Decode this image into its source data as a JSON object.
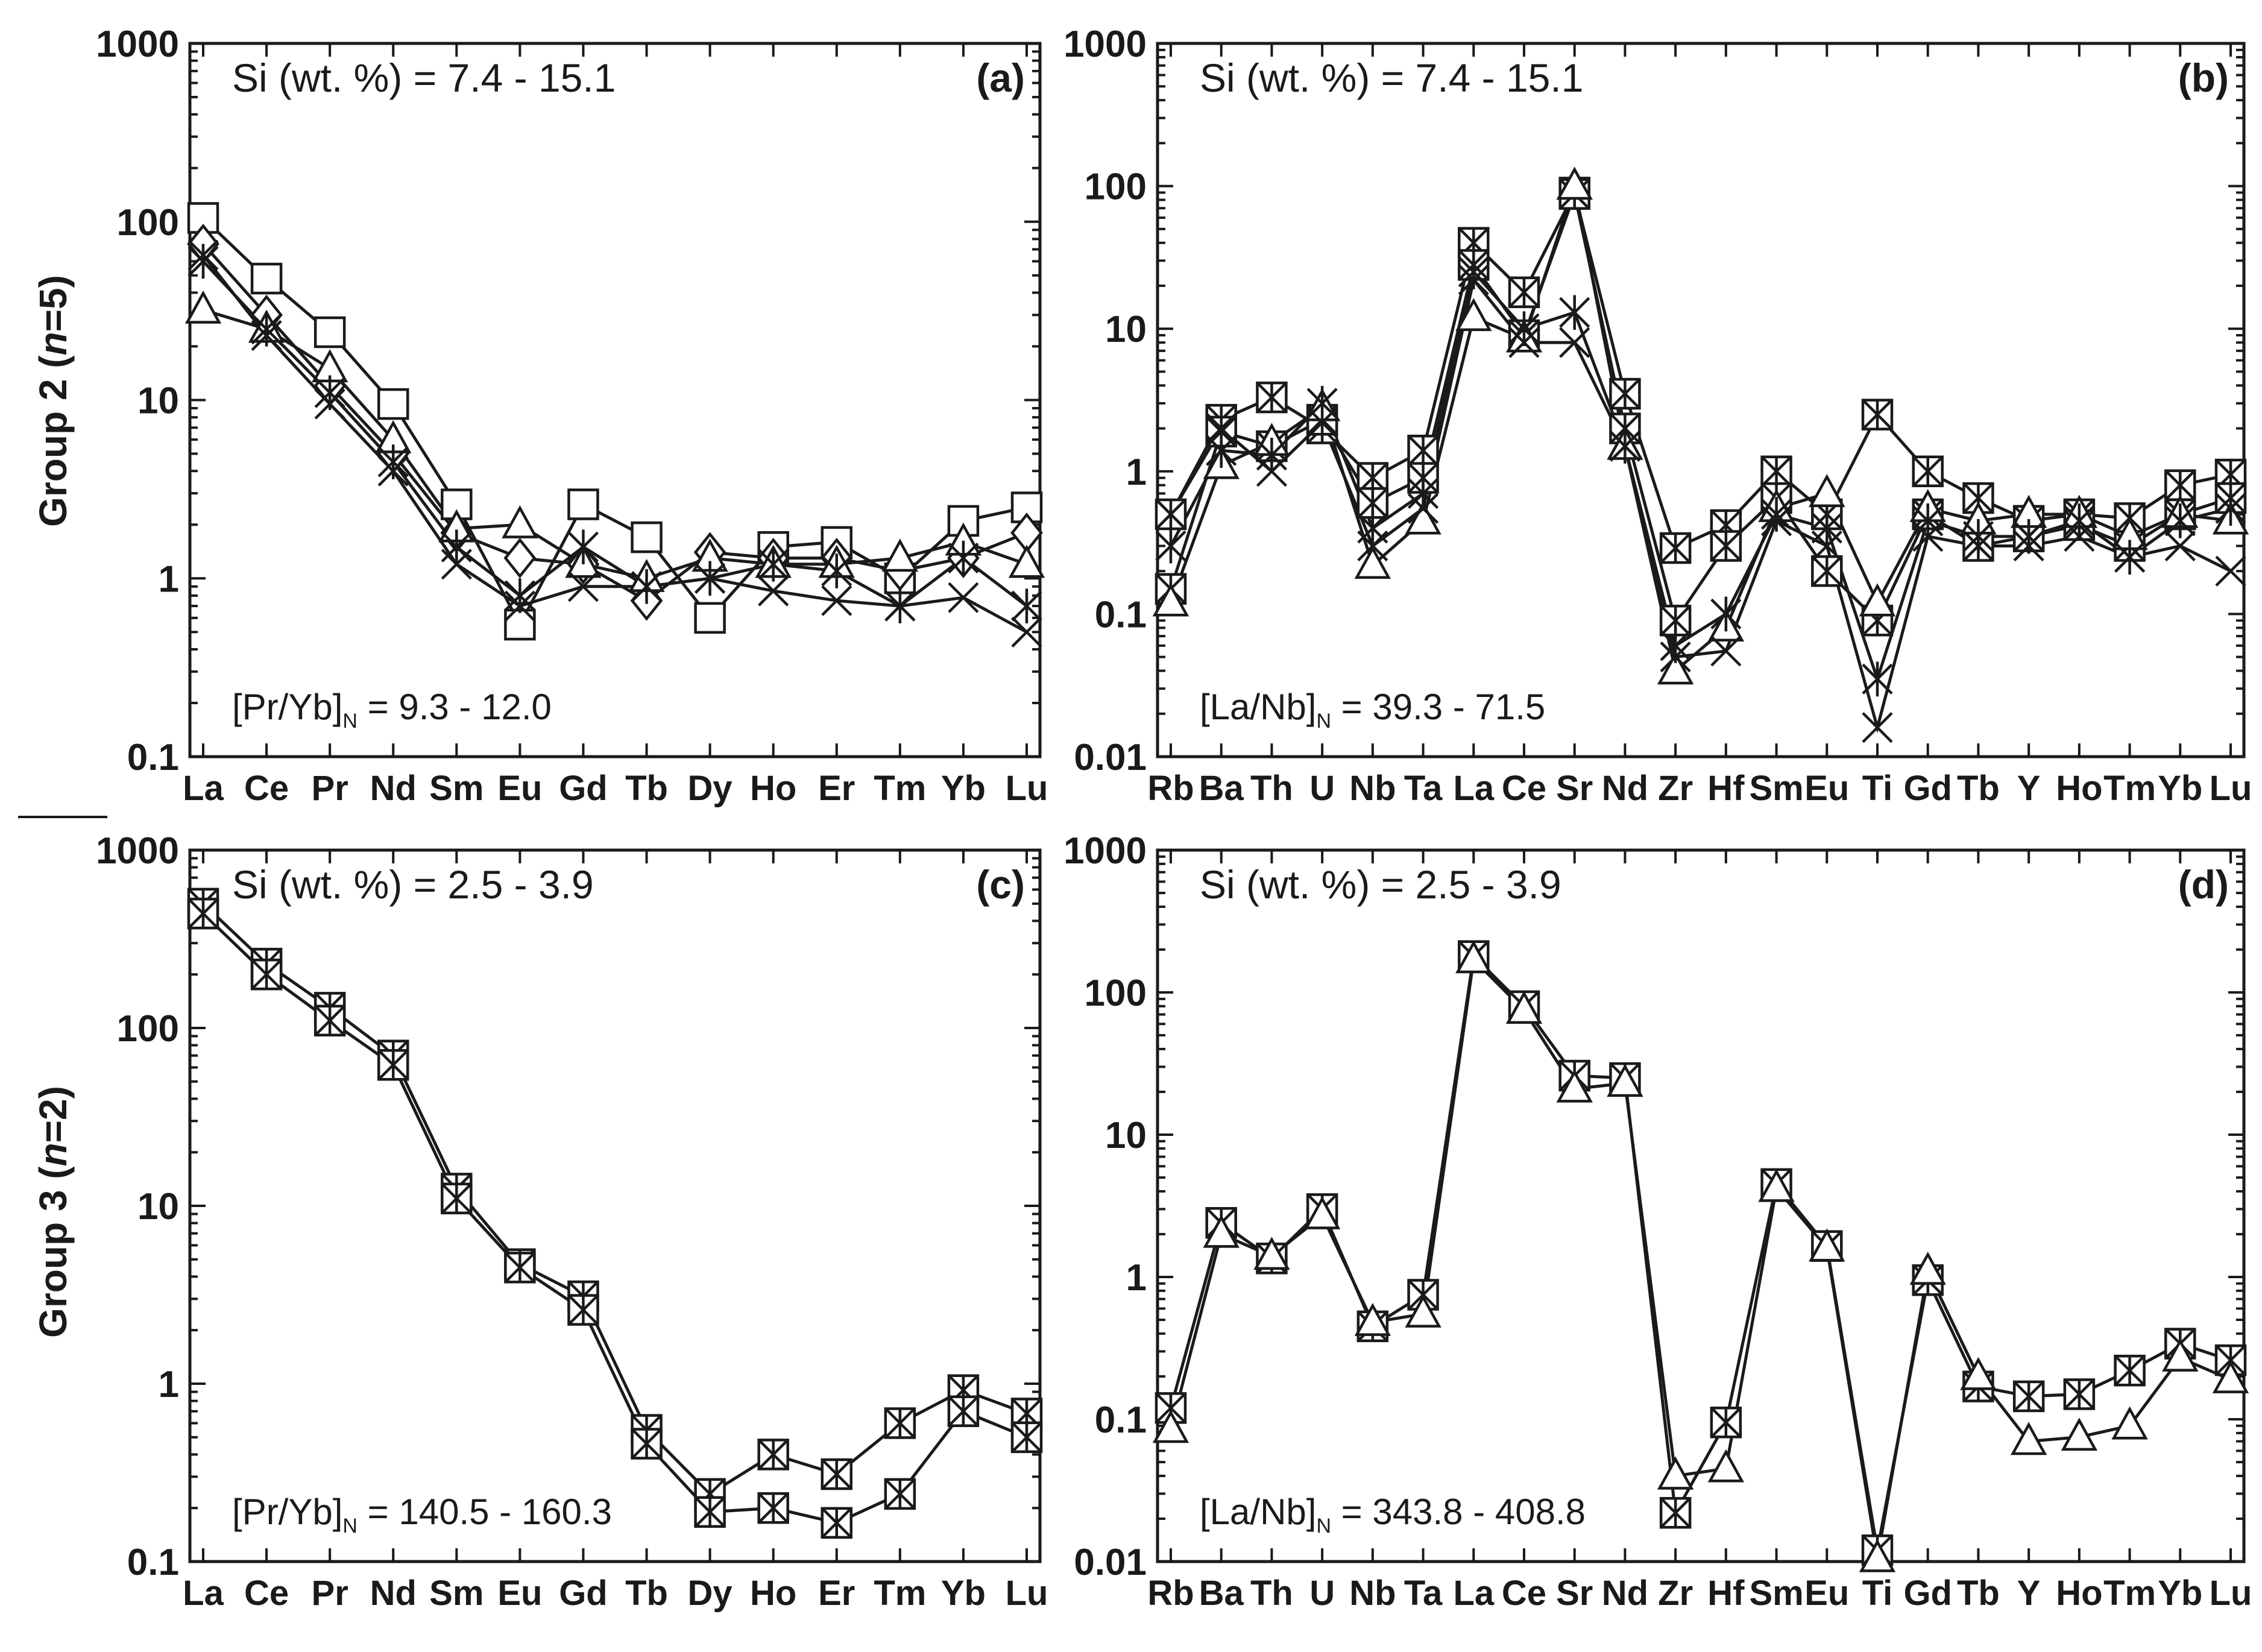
{
  "figure": {
    "row_labels": [
      {
        "prefix": "Group 2 (",
        "n": "n",
        "suffix": "=5)"
      },
      {
        "prefix": "Group 3 (",
        "n": "n",
        "suffix": "=2)"
      }
    ]
  },
  "chart_data": [
    {
      "type": "line",
      "id": "a",
      "letter": "(a)",
      "title": "Si (wt. %) = 7.4 - 15.1",
      "ratio": {
        "open": "[Pr/Yb]",
        "sub": "N",
        "value": " = 9.3 - 12.0"
      },
      "yscale": "log",
      "ylim": [
        0.1,
        1000
      ],
      "yticks": [
        "1000",
        "100",
        "10",
        "1",
        "0.1"
      ],
      "categories": [
        "La",
        "Ce",
        "Pr",
        "Nd",
        "Sm",
        "Eu",
        "Gd",
        "Tb",
        "Dy",
        "Ho",
        "Er",
        "Tm",
        "Yb",
        "Lu"
      ],
      "series": [
        {
          "name": "square",
          "marker": "square",
          "values": [
            105,
            48,
            24,
            9.5,
            2.6,
            0.55,
            2.6,
            1.7,
            0.6,
            1.5,
            1.6,
            1.0,
            2.1,
            2.5
          ]
        },
        {
          "name": "diamond",
          "marker": "diamond",
          "values": [
            75,
            30,
            12,
            5.0,
            1.8,
            1.3,
            1.2,
            0.75,
            1.4,
            1.3,
            1.3,
            1.1,
            1.3,
            1.8
          ]
        },
        {
          "name": "triangle",
          "marker": "triangle",
          "values": [
            32,
            25,
            15,
            6.0,
            1.9,
            2.0,
            1.2,
            1.0,
            1.3,
            1.2,
            1.2,
            1.3,
            1.6,
            1.2
          ]
        },
        {
          "name": "star",
          "marker": "star",
          "values": [
            60,
            25,
            11,
            4.5,
            1.5,
            0.8,
            1.5,
            0.9,
            1.0,
            1.2,
            1.1,
            0.7,
            1.3,
            0.7
          ]
        },
        {
          "name": "cross",
          "marker": "cross",
          "values": [
            65,
            23,
            9.5,
            4.0,
            1.2,
            0.7,
            0.9,
            0.9,
            1.0,
            0.85,
            0.75,
            0.7,
            0.78,
            0.5
          ]
        }
      ]
    },
    {
      "type": "line",
      "id": "b",
      "letter": "(b)",
      "title": "Si (wt. %) = 7.4 - 15.1",
      "ratio": {
        "open": "[La/Nb]",
        "sub": "N",
        "value": " = 39.3 - 71.5"
      },
      "yscale": "log",
      "ylim": [
        0.01,
        1000
      ],
      "yticks": [
        "1000",
        "100",
        "10",
        "1",
        "0.1",
        "0.01"
      ],
      "categories": [
        "Rb",
        "Ba",
        "Th",
        "U",
        "Nb",
        "Ta",
        "La",
        "Ce",
        "Sr",
        "Nd",
        "Zr",
        "Hf",
        "Sm",
        "Eu",
        "Ti",
        "Gd",
        "Tb",
        "Y",
        "Ho",
        "Tm",
        "Yb",
        "Lu"
      ],
      "series": [
        {
          "name": "boxstar-1",
          "marker": "boxstar",
          "values": [
            0.5,
            2.3,
            3.3,
            2.0,
            0.9,
            1.4,
            40,
            18,
            90,
            3.5,
            0.29,
            0.42,
            1.0,
            0.5,
            2.5,
            1.0,
            0.65,
            0.45,
            0.5,
            0.47,
            0.8,
            0.95
          ]
        },
        {
          "name": "boxstar-2",
          "marker": "boxstar",
          "values": [
            0.15,
            1.9,
            1.5,
            2.3,
            0.6,
            0.9,
            28,
            9,
            88,
            2.0,
            0.09,
            0.3,
            0.65,
            0.2,
            0.09,
            0.5,
            0.3,
            0.35,
            0.42,
            0.3,
            0.5,
            0.65
          ]
        },
        {
          "name": "triangle",
          "marker": "triangle",
          "values": [
            0.12,
            1.1,
            1.6,
            2.8,
            0.22,
            0.45,
            12,
            8.5,
            100,
            1.5,
            0.04,
            0.08,
            0.55,
            0.7,
            0.12,
            0.55,
            0.45,
            0.5,
            0.5,
            0.35,
            0.5,
            0.45
          ]
        },
        {
          "name": "star",
          "marker": "star",
          "values": [
            0.3,
            1.4,
            1.3,
            3.0,
            0.4,
            0.7,
            25,
            10,
            13,
            1.5,
            0.06,
            0.1,
            0.5,
            0.4,
            0.035,
            0.45,
            0.35,
            0.35,
            0.45,
            0.25,
            0.45,
            0.55
          ]
        },
        {
          "name": "cross",
          "marker": "cross",
          "values": [
            0.5,
            2.0,
            1.0,
            2.2,
            0.3,
            0.55,
            22,
            8,
            8,
            1.5,
            0.05,
            0.055,
            0.45,
            0.3,
            0.016,
            0.35,
            0.3,
            0.3,
            0.35,
            0.25,
            0.3,
            0.2
          ]
        }
      ]
    },
    {
      "type": "line",
      "id": "c",
      "letter": "(c)",
      "title": "Si (wt. %) = 2.5 - 3.9",
      "ratio": {
        "open": "[Pr/Yb]",
        "sub": "N",
        "value": " = 140.5 - 160.3"
      },
      "yscale": "log",
      "ylim": [
        0.1,
        1000
      ],
      "yticks": [
        "1000",
        "100",
        "10",
        "1",
        "0.1"
      ],
      "categories": [
        "La",
        "Ce",
        "Pr",
        "Nd",
        "Sm",
        "Eu",
        "Gd",
        "Tb",
        "Dy",
        "Ho",
        "Er",
        "Tm",
        "Yb",
        "Lu"
      ],
      "series": [
        {
          "name": "boxstar-1",
          "marker": "boxstar",
          "values": [
            500,
            230,
            130,
            70,
            12.5,
            4.7,
            3.1,
            0.55,
            0.24,
            0.4,
            0.31,
            0.6,
            0.92,
            0.68
          ]
        },
        {
          "name": "boxstar-2",
          "marker": "boxstar",
          "values": [
            440,
            200,
            110,
            62,
            11,
            4.5,
            2.6,
            0.46,
            0.19,
            0.2,
            0.165,
            0.24,
            0.7,
            0.5
          ]
        }
      ]
    },
    {
      "type": "line",
      "id": "d",
      "letter": "(d)",
      "title": "Si (wt. %) = 2.5 - 3.9",
      "ratio": {
        "open": "[La/Nb]",
        "sub": "N",
        "value": " = 343.8 - 408.8"
      },
      "yscale": "log",
      "ylim": [
        0.01,
        1000
      ],
      "yticks": [
        "1000",
        "100",
        "10",
        "1",
        "0.1",
        "0.01"
      ],
      "categories": [
        "Rb",
        "Ba",
        "Th",
        "U",
        "Nb",
        "Ta",
        "La",
        "Ce",
        "Sr",
        "Nd",
        "Zr",
        "Hf",
        "Sm",
        "Eu",
        "Ti",
        "Gd",
        "Tb",
        "Y",
        "Ho",
        "Tm",
        "Yb",
        "Lu"
      ],
      "series": [
        {
          "name": "boxstar",
          "marker": "boxstar",
          "values": [
            0.12,
            2.4,
            1.35,
            3.0,
            0.45,
            0.75,
            180,
            80,
            26,
            25,
            0.022,
            0.095,
            4.5,
            1.65,
            0.012,
            0.95,
            0.17,
            0.145,
            0.15,
            0.22,
            0.34,
            0.26
          ]
        },
        {
          "name": "triangle",
          "marker": "triangle",
          "values": [
            0.085,
            2.0,
            1.4,
            2.7,
            0.48,
            0.55,
            170,
            75,
            21,
            23,
            0.04,
            0.045,
            4.2,
            1.6,
            0.0105,
            1.1,
            0.2,
            0.07,
            0.075,
            0.09,
            0.27,
            0.19
          ]
        }
      ]
    }
  ]
}
